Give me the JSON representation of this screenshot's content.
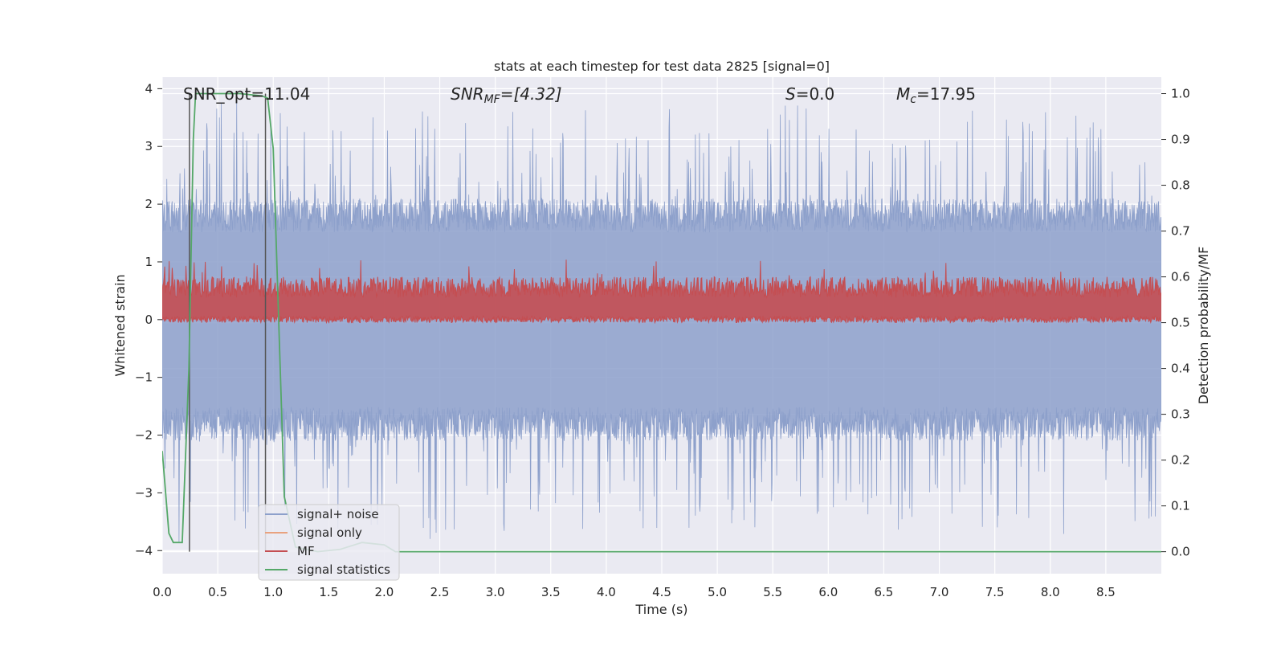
{
  "chart_data": {
    "type": "line",
    "title": "stats at each timestep for test data 2825 [signal=0]",
    "xlabel": "Time (s)",
    "ylabel": "Whitened strain",
    "y2label": "Detection probability/MF",
    "xlim": [
      0.0,
      9.0
    ],
    "ylim": [
      -4.4,
      4.2
    ],
    "y2lim": [
      -0.048,
      1.036
    ],
    "x_ticks": [
      "0.0",
      "0.5",
      "1.0",
      "1.5",
      "2.0",
      "2.5",
      "3.0",
      "3.5",
      "4.0",
      "4.5",
      "5.0",
      "5.5",
      "6.0",
      "6.5",
      "7.0",
      "7.5",
      "8.0",
      "8.5"
    ],
    "y_ticks": [
      "4",
      "3",
      "2",
      "1",
      "0",
      "−1",
      "−2",
      "−3",
      "−4"
    ],
    "y2_ticks": [
      "1.0",
      "0.9",
      "0.8",
      "0.7",
      "0.6",
      "0.5",
      "0.4",
      "0.3",
      "0.2",
      "0.1",
      "0.0"
    ],
    "grid": true,
    "legend_position": "lower-left",
    "annotations": {
      "snr_opt": "SNR_opt=11.04",
      "snr_mf_main": "SNR",
      "snr_mf_sub": "MF",
      "snr_mf_value": "=[4.32]",
      "s_main": "S",
      "s_value": "=0.0",
      "mc_main": "M",
      "mc_sub": "c",
      "mc_value": "=17.95"
    },
    "series": [
      {
        "name": "signal+ noise",
        "color": "#8da0cb",
        "axis": "left",
        "envelope": {
          "x_start": 0.0,
          "x_end": 9.0,
          "typical_abs_peak": 2.1,
          "max": 3.9,
          "min": -4.0
        }
      },
      {
        "name": "signal only",
        "color": "#e9a27f",
        "axis": "left",
        "values": []
      },
      {
        "name": "MF",
        "color": "#c44e52",
        "axis": "right",
        "range": [
          0.5,
          0.6
        ],
        "max": 0.64
      },
      {
        "name": "signal statistics",
        "color": "#55a868",
        "axis": "right",
        "x": [
          0.0,
          0.06,
          0.1,
          0.18,
          0.24,
          0.28,
          0.3,
          0.5,
          0.7,
          0.9,
          0.95,
          1.0,
          1.05,
          1.1,
          1.2,
          1.4,
          1.6,
          1.8,
          2.0,
          2.1,
          9.0
        ],
        "values": [
          0.22,
          0.04,
          0.02,
          0.02,
          0.4,
          0.9,
          1.0,
          1.0,
          1.0,
          0.995,
          0.99,
          0.88,
          0.5,
          0.12,
          0.01,
          0.0,
          0.005,
          0.02,
          0.015,
          0.0,
          0.0
        ]
      }
    ],
    "vertical_markers": [
      {
        "x": 0.245,
        "color": "#555555"
      },
      {
        "x": 0.93,
        "color": "#555555"
      }
    ],
    "legend": [
      "signal+ noise",
      "signal only",
      "MF",
      "signal statistics"
    ]
  }
}
